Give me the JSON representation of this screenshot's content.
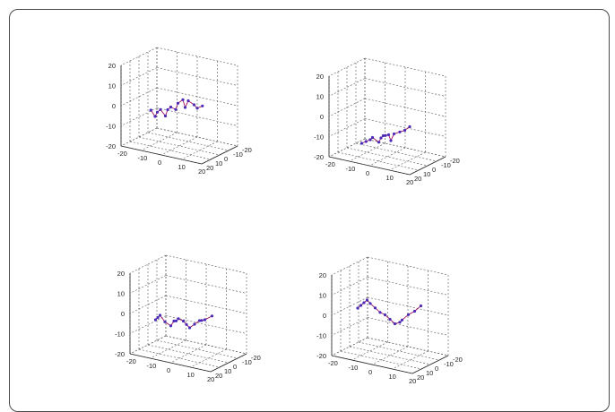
{
  "colors": {
    "walk": "#a01060",
    "points": "#4b2bb8",
    "grid": "#555555"
  },
  "chart_data": [
    {
      "type": "scatter",
      "projection": "3d",
      "title": "",
      "grid": true,
      "xlim": [
        -20,
        20
      ],
      "ylim": [
        -20,
        20
      ],
      "zlim": [
        -20,
        20
      ],
      "x_tick_labels": [
        "-20",
        "-10",
        "0",
        "10",
        "20"
      ],
      "y_tick_labels": [
        "20",
        "10",
        "0",
        "-10",
        "-20"
      ],
      "z_tick_labels": [
        "20",
        "10",
        "0",
        "-10",
        "-20"
      ],
      "series": [
        {
          "x": [
            -15,
            -12,
            -10,
            -8,
            -6,
            -4,
            -2,
            0,
            2,
            4,
            6,
            8,
            10,
            12,
            15
          ],
          "y": [
            -2,
            0,
            2,
            3,
            2,
            4,
            5,
            4,
            6,
            5,
            7,
            8,
            6,
            7,
            8
          ],
          "z": [
            -6,
            -8,
            -5,
            -3,
            -6,
            -2,
            0,
            -1,
            3,
            5,
            2,
            6,
            4,
            3,
            5
          ]
        }
      ]
    },
    {
      "type": "scatter",
      "projection": "3d",
      "title": "",
      "grid": true,
      "xlim": [
        -20,
        20
      ],
      "ylim": [
        -20,
        20
      ],
      "zlim": [
        -20,
        20
      ],
      "x_tick_labels": [
        "-20",
        "-10",
        "0",
        "10",
        "20"
      ],
      "y_tick_labels": [
        "20",
        "10",
        "0",
        "-10",
        "-20"
      ],
      "z_tick_labels": [
        "20",
        "10",
        "0",
        "-10",
        "-20"
      ],
      "series": [
        {
          "x": [
            -18,
            -15,
            -12,
            -10,
            -6,
            -4,
            -2,
            0,
            2,
            4,
            6,
            8,
            10,
            12
          ],
          "y": [
            -12,
            -10,
            -8,
            -6,
            -4,
            -2,
            0,
            2,
            3,
            5,
            6,
            4,
            3,
            2
          ],
          "z": [
            -20,
            -18,
            -16,
            -14,
            -15,
            -12,
            -10,
            -9,
            -8,
            -10,
            -6,
            -5,
            -4,
            -2
          ]
        }
      ]
    },
    {
      "type": "scatter",
      "projection": "3d",
      "title": "",
      "grid": true,
      "xlim": [
        -20,
        20
      ],
      "ylim": [
        -20,
        20
      ],
      "zlim": [
        -20,
        20
      ],
      "x_tick_labels": [
        "-20",
        "-10",
        "0",
        "10",
        "20"
      ],
      "y_tick_labels": [
        "20",
        "10",
        "0",
        "-10",
        "-20"
      ],
      "z_tick_labels": [
        "20",
        "10",
        "0",
        "-10",
        "-20"
      ],
      "series": [
        {
          "x": [
            -18,
            -16,
            -14,
            -12,
            -10,
            -8,
            -6,
            -4,
            -2,
            0,
            2,
            4,
            6,
            8,
            10,
            14
          ],
          "y": [
            -4,
            -2,
            0,
            -1,
            -3,
            -2,
            0,
            2,
            1,
            2,
            3,
            2,
            1,
            3,
            4,
            5
          ],
          "z": [
            -8,
            -6,
            -4,
            -7,
            -9,
            -6,
            -5,
            -3,
            -4,
            -5,
            -6,
            -4,
            -2,
            -1,
            0,
            3
          ]
        }
      ]
    },
    {
      "type": "scatter",
      "projection": "3d",
      "title": "",
      "grid": true,
      "xlim": [
        -20,
        20
      ],
      "ylim": [
        -20,
        20
      ],
      "zlim": [
        -20,
        20
      ],
      "x_tick_labels": [
        "-20",
        "-10",
        "0",
        "10",
        "20"
      ],
      "y_tick_labels": [
        "20",
        "10",
        "0",
        "-10",
        "-20"
      ],
      "z_tick_labels": [
        "20",
        "10",
        "0",
        "-10",
        "-20"
      ],
      "series": [
        {
          "x": [
            -16,
            -14,
            -12,
            -10,
            -8,
            -6,
            -4,
            -2,
            0,
            2,
            4,
            6,
            10,
            14,
            18
          ],
          "y": [
            0,
            1,
            2,
            3,
            4,
            3,
            2,
            1,
            0,
            -1,
            -2,
            0,
            2,
            4,
            6
          ],
          "z": [
            0,
            2,
            4,
            6,
            5,
            3,
            1,
            0,
            -2,
            -4,
            -3,
            -1,
            3,
            6,
            10
          ]
        }
      ]
    }
  ]
}
